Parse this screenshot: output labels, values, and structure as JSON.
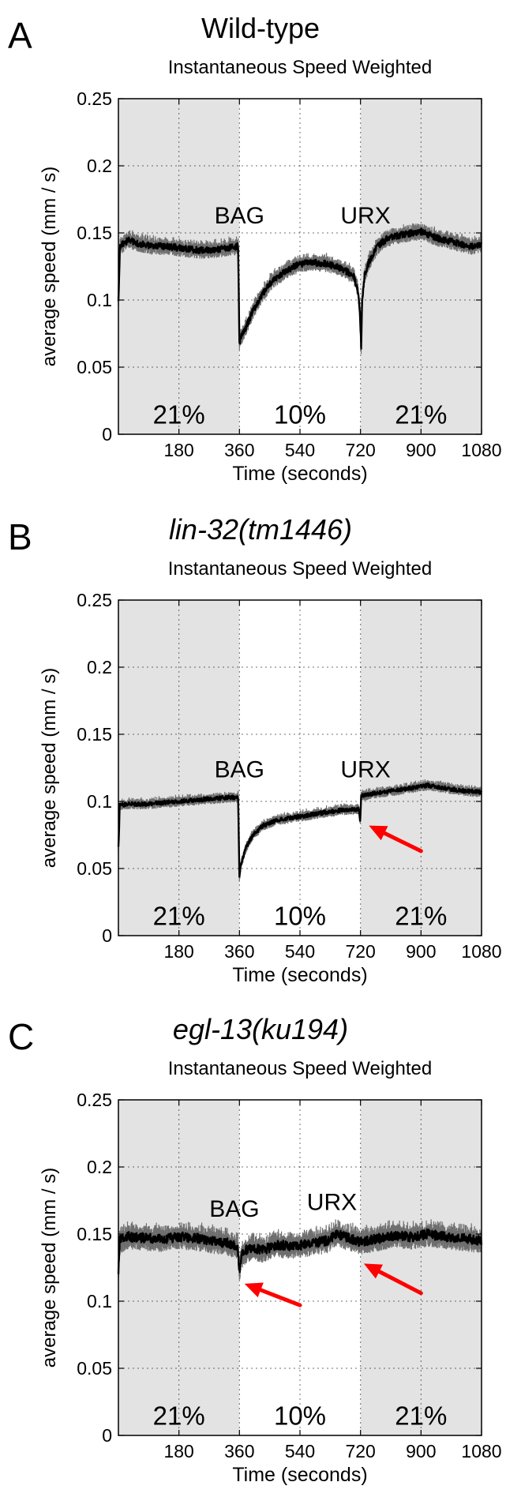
{
  "chart_data": [
    {
      "type": "line",
      "panel_label": "A",
      "heading": "Wild-type",
      "heading_style": "normal",
      "title": "Instantaneous Speed Weighted",
      "xlabel": "Time (seconds)",
      "ylabel": "average speed (mm / s)",
      "xlim": [
        0,
        1080
      ],
      "ylim": [
        0,
        0.25
      ],
      "xticks": [
        "180",
        "360",
        "540",
        "720",
        "900",
        "1080"
      ],
      "yticks": [
        "0",
        "0.05",
        "0.1",
        "0.15",
        "0.2",
        "0.25"
      ],
      "grid": true,
      "shaded_regions": [
        [
          0,
          360
        ],
        [
          720,
          1080
        ]
      ],
      "region_labels": [
        {
          "text": "21%",
          "x": 180,
          "y": 0.008
        },
        {
          "text": "10%",
          "x": 540,
          "y": 0.008
        },
        {
          "text": "21%",
          "x": 900,
          "y": 0.008
        }
      ],
      "annotations": [
        {
          "text": "BAG",
          "x": 360,
          "y": 0.157
        },
        {
          "text": "URX",
          "x": 735,
          "y": 0.157
        }
      ],
      "arrows": [],
      "noise": 0.004,
      "series": [
        {
          "x": [
            0,
            5,
            30,
            60,
            100,
            150,
            200,
            250,
            300,
            330,
            356,
            360,
            363,
            375,
            400,
            430,
            460,
            500,
            540,
            580,
            620,
            660,
            700,
            712,
            718,
            722,
            725,
            732,
            745,
            770,
            800,
            850,
            900,
            950,
            1000,
            1050,
            1080
          ],
          "y": [
            0.1,
            0.14,
            0.145,
            0.142,
            0.14,
            0.14,
            0.138,
            0.137,
            0.138,
            0.139,
            0.14,
            0.068,
            0.072,
            0.077,
            0.092,
            0.105,
            0.115,
            0.122,
            0.127,
            0.128,
            0.127,
            0.124,
            0.118,
            0.108,
            0.09,
            0.066,
            0.1,
            0.118,
            0.128,
            0.14,
            0.146,
            0.149,
            0.151,
            0.146,
            0.143,
            0.14,
            0.142
          ]
        }
      ]
    },
    {
      "type": "line",
      "panel_label": "B",
      "heading": "lin-32(tm1446)",
      "heading_style": "italic",
      "title": "Instantaneous Speed Weighted",
      "xlabel": "Time (seconds)",
      "ylabel": "average speed (mm / s)",
      "xlim": [
        0,
        1080
      ],
      "ylim": [
        0,
        0.25
      ],
      "xticks": [
        "180",
        "360",
        "540",
        "720",
        "900",
        "1080"
      ],
      "yticks": [
        "0",
        "0.05",
        "0.1",
        "0.15",
        "0.2",
        "0.25"
      ],
      "grid": true,
      "shaded_regions": [
        [
          0,
          360
        ],
        [
          720,
          1080
        ]
      ],
      "region_labels": [
        {
          "text": "21%",
          "x": 180,
          "y": 0.008
        },
        {
          "text": "10%",
          "x": 540,
          "y": 0.008
        },
        {
          "text": "21%",
          "x": 900,
          "y": 0.008
        }
      ],
      "annotations": [
        {
          "text": "BAG",
          "x": 360,
          "y": 0.118
        },
        {
          "text": "URX",
          "x": 735,
          "y": 0.118
        }
      ],
      "arrows": [
        {
          "from": [
            900,
            0.063
          ],
          "to": [
            745,
            0.082
          ]
        }
      ],
      "noise": 0.0025,
      "series": [
        {
          "x": [
            0,
            4,
            30,
            80,
            130,
            180,
            230,
            280,
            330,
            356,
            360,
            363,
            380,
            400,
            430,
            470,
            520,
            570,
            620,
            680,
            715,
            719,
            722,
            760,
            820,
            870,
            920,
            970,
            1020,
            1080
          ],
          "y": [
            0.065,
            0.097,
            0.098,
            0.098,
            0.099,
            0.1,
            0.101,
            0.102,
            0.103,
            0.103,
            0.043,
            0.052,
            0.066,
            0.075,
            0.082,
            0.086,
            0.088,
            0.09,
            0.092,
            0.094,
            0.094,
            0.086,
            0.104,
            0.106,
            0.108,
            0.11,
            0.112,
            0.11,
            0.108,
            0.107
          ]
        }
      ]
    },
    {
      "type": "line",
      "panel_label": "C",
      "heading": "egl-13(ku194)",
      "heading_style": "italic",
      "title": "Instantaneous Speed Weighted",
      "xlabel": "Time (seconds)",
      "ylabel": "average speed (mm / s)",
      "xlim": [
        0,
        1080
      ],
      "ylim": [
        0,
        0.25
      ],
      "xticks": [
        "180",
        "360",
        "540",
        "720",
        "900",
        "1080"
      ],
      "yticks": [
        "0",
        "0.05",
        "0.1",
        "0.15",
        "0.2",
        "0.25"
      ],
      "grid": true,
      "shaded_regions": [
        [
          0,
          360
        ],
        [
          720,
          1080
        ]
      ],
      "region_labels": [
        {
          "text": "21%",
          "x": 180,
          "y": 0.008
        },
        {
          "text": "10%",
          "x": 540,
          "y": 0.008
        },
        {
          "text": "21%",
          "x": 900,
          "y": 0.008
        }
      ],
      "annotations": [
        {
          "text": "BAG",
          "x": 345,
          "y": 0.163
        },
        {
          "text": "URX",
          "x": 635,
          "y": 0.168
        }
      ],
      "arrows": [
        {
          "from": [
            540,
            0.097
          ],
          "to": [
            375,
            0.113
          ]
        },
        {
          "from": [
            900,
            0.106
          ],
          "to": [
            730,
            0.128
          ]
        }
      ],
      "noise": 0.006,
      "series": [
        {
          "x": [
            0,
            4,
            30,
            80,
            130,
            180,
            230,
            280,
            330,
            355,
            360,
            365,
            380,
            400,
            430,
            470,
            520,
            570,
            620,
            650,
            670,
            700,
            720,
            740,
            780,
            820,
            870,
            920,
            970,
            1020,
            1080
          ],
          "y": [
            0.12,
            0.145,
            0.148,
            0.147,
            0.146,
            0.148,
            0.147,
            0.145,
            0.143,
            0.14,
            0.122,
            0.133,
            0.138,
            0.14,
            0.138,
            0.142,
            0.141,
            0.143,
            0.145,
            0.15,
            0.148,
            0.146,
            0.144,
            0.145,
            0.147,
            0.149,
            0.148,
            0.15,
            0.148,
            0.147,
            0.145
          ]
        }
      ]
    }
  ]
}
